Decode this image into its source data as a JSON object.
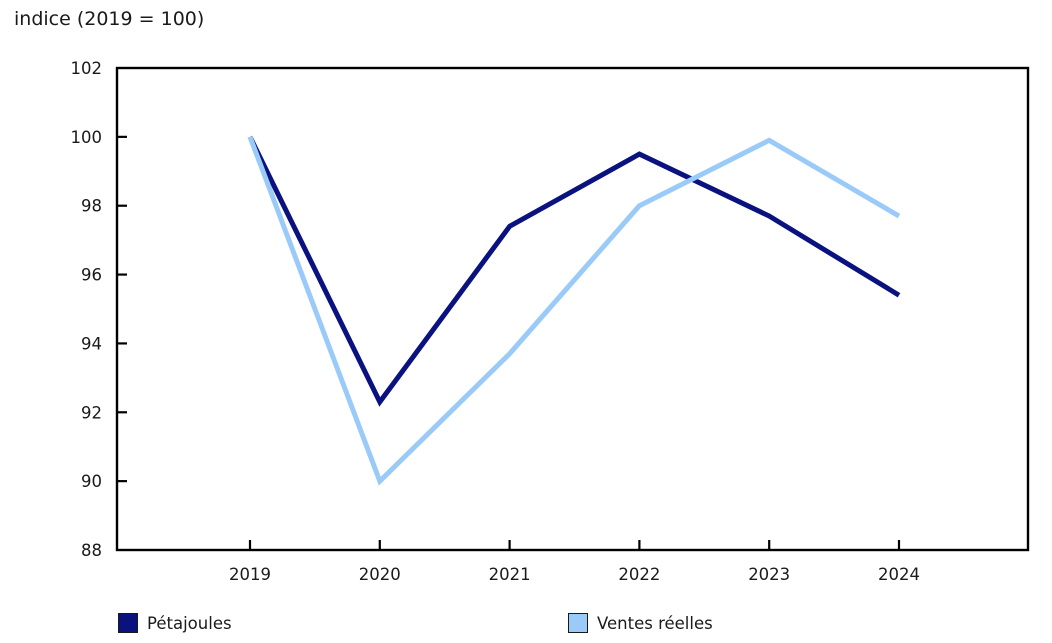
{
  "header": {
    "title": "indice (2019 = 100)"
  },
  "chart_data": {
    "type": "line",
    "title": "indice (2019 = 100)",
    "ylabel": "indice (2019 = 100)",
    "xlabel": "",
    "categories": [
      "2019",
      "2020",
      "2021",
      "2022",
      "2023",
      "2024"
    ],
    "series": [
      {
        "name": "Pétajoules",
        "color": "#0a1280",
        "values": [
          100,
          92.3,
          97.4,
          99.5,
          97.7,
          95.4
        ]
      },
      {
        "name": "Ventes réelles",
        "color": "#9acbf8",
        "values": [
          100,
          90,
          93.7,
          98,
          99.9,
          97.7
        ]
      }
    ],
    "ylim": [
      88,
      102
    ],
    "yticks": [
      102,
      100,
      98,
      96,
      94,
      92,
      90,
      88
    ],
    "grid": false,
    "legend_position": "bottom",
    "axis_color": "#000000",
    "text_color": "#1a1a1a",
    "background": "#ffffff"
  }
}
